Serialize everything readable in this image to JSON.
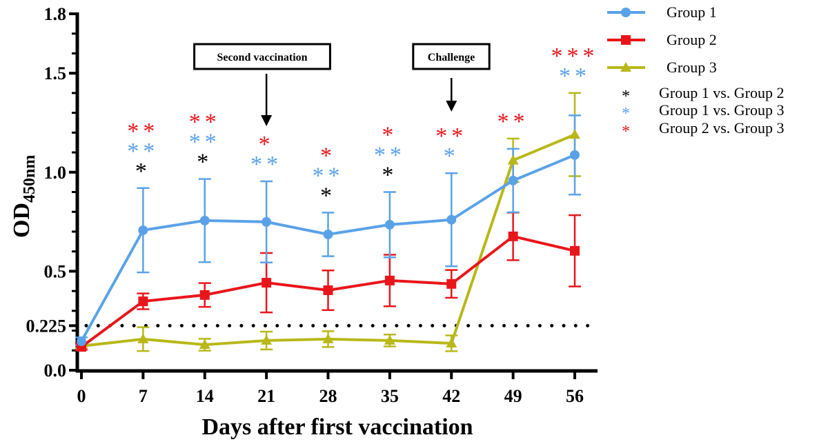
{
  "chart_data": {
    "type": "line",
    "xlabel": "Days after first vaccination",
    "ylabel": "OD",
    "ylabel_subscript": "450nm",
    "x": [
      0,
      7,
      14,
      21,
      28,
      35,
      42,
      49,
      56
    ],
    "x_ticks": [
      "0",
      "7",
      "14",
      "21",
      "28",
      "35",
      "42",
      "49",
      "56"
    ],
    "y_ticks": [
      "0.0",
      "0.225",
      "0.5",
      "1.0",
      "1.5",
      "1.8"
    ],
    "y_tick_values": [
      0,
      0.225,
      0.5,
      1.0,
      1.5,
      1.8
    ],
    "xlim": [
      0,
      62
    ],
    "ylim": [
      0,
      1.8
    ],
    "cutoff_line": 0.225,
    "grid": false,
    "legend_position": "right",
    "series": [
      {
        "name": "Group 1",
        "color": "#5aa2e8",
        "marker": "circle",
        "values": [
          0.146,
          0.707,
          0.756,
          0.749,
          0.686,
          0.735,
          0.76,
          0.958,
          1.087
        ],
        "error": [
          0.02,
          0.213,
          0.21,
          0.205,
          0.11,
          0.165,
          0.235,
          0.16,
          0.2
        ]
      },
      {
        "name": "Group 2",
        "color": "#e8161b",
        "marker": "square",
        "values": [
          0.118,
          0.348,
          0.38,
          0.442,
          0.404,
          0.453,
          0.436,
          0.676,
          0.603
        ],
        "error": [
          0.015,
          0.04,
          0.06,
          0.15,
          0.1,
          0.13,
          0.07,
          0.12,
          0.18
        ]
      },
      {
        "name": "Group 3",
        "color": "#b8b81a",
        "marker": "triangle",
        "values": [
          0.122,
          0.157,
          0.129,
          0.15,
          0.157,
          0.15,
          0.136,
          1.06,
          1.19
        ],
        "error": [
          0.01,
          0.06,
          0.03,
          0.045,
          0.04,
          0.03,
          0.04,
          0.11,
          0.21
        ]
      }
    ],
    "significance_legend": [
      {
        "label": "Group 1 vs. Group 2",
        "color": "#000000"
      },
      {
        "label": "Group 1 vs. Group 3",
        "color": "#5aa2e8"
      },
      {
        "label": "Group 2 vs. Group 3",
        "color": "#e8161b"
      }
    ],
    "significance": [
      {
        "day": 7,
        "g1_g2": "*",
        "g1_g3": "**",
        "g2_g3": "**"
      },
      {
        "day": 14,
        "g1_g2": "*",
        "g1_g3": "**",
        "g2_g3": "**"
      },
      {
        "day": 21,
        "g1_g2": "",
        "g1_g3": "**",
        "g2_g3": "*"
      },
      {
        "day": 28,
        "g1_g2": "*",
        "g1_g3": "**",
        "g2_g3": "*"
      },
      {
        "day": 35,
        "g1_g2": "*",
        "g1_g3": "**",
        "g2_g3": "*"
      },
      {
        "day": 42,
        "g1_g2": "",
        "g1_g3": "*",
        "g2_g3": "**"
      },
      {
        "day": 49,
        "g1_g2": "",
        "g1_g3": "",
        "g2_g3": "**"
      },
      {
        "day": 56,
        "g1_g2": "",
        "g1_g3": "**",
        "g2_g3": "***"
      }
    ],
    "annotations": [
      {
        "label": "Second vaccination",
        "day": 21
      },
      {
        "label": "Challenge",
        "day": 42
      }
    ]
  }
}
